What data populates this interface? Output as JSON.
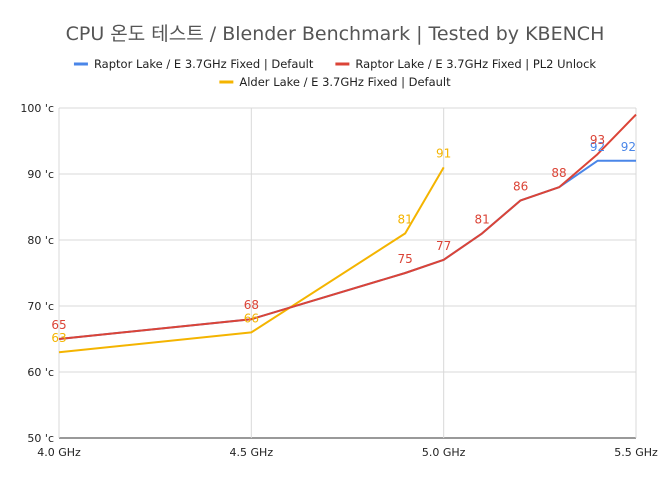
{
  "chart_data": {
    "type": "line",
    "title": "CPU 온도 테스트 / Blender Benchmark | Tested by KBENCH",
    "xlabel": "",
    "ylabel": "",
    "x_ticks": [
      {
        "value": 4.0,
        "label": "4.0 GHz"
      },
      {
        "value": 4.5,
        "label": "4.5 GHz"
      },
      {
        "value": 5.0,
        "label": "5.0 GHz"
      },
      {
        "value": 5.5,
        "label": "5.5 GHz"
      }
    ],
    "y_ticks": [
      {
        "value": 50,
        "label": "50 'c"
      },
      {
        "value": 60,
        "label": "60 'c"
      },
      {
        "value": 70,
        "label": "70 'c"
      },
      {
        "value": 80,
        "label": "80 'c"
      },
      {
        "value": 90,
        "label": "90 'c"
      },
      {
        "value": 100,
        "label": "100 'c"
      }
    ],
    "xlim": [
      4.0,
      5.5
    ],
    "ylim": [
      50,
      100
    ],
    "grid": true,
    "legend_position": "top",
    "series": [
      {
        "name": "Raptor Lake / E 3.7GHz Fixed |  Default",
        "color": "#4a86e8",
        "x": [
          4.0,
          4.5,
          4.9,
          5.0,
          5.1,
          5.2,
          5.3,
          5.4,
          5.5
        ],
        "y": [
          65,
          68,
          75,
          77,
          81,
          86,
          88,
          92,
          92
        ],
        "labels": [
          {
            "x": 5.4,
            "y": 92,
            "text": "92"
          },
          {
            "x": 5.5,
            "y": 92,
            "text": "92"
          }
        ]
      },
      {
        "name": "Raptor Lake / E 3.7GHz Fixed |  PL2 Unlock",
        "color": "#db4437",
        "x": [
          4.0,
          4.5,
          4.9,
          5.0,
          5.1,
          5.2,
          5.3,
          5.4,
          5.5
        ],
        "y": [
          65,
          68,
          75,
          77,
          81,
          86,
          88,
          93,
          99
        ],
        "labels": [
          {
            "x": 4.0,
            "y": 65,
            "text": "65"
          },
          {
            "x": 4.5,
            "y": 68,
            "text": "68"
          },
          {
            "x": 4.9,
            "y": 75,
            "text": "75"
          },
          {
            "x": 5.0,
            "y": 77,
            "text": "77"
          },
          {
            "x": 5.1,
            "y": 81,
            "text": "81"
          },
          {
            "x": 5.2,
            "y": 86,
            "text": "86"
          },
          {
            "x": 5.3,
            "y": 88,
            "text": "88"
          },
          {
            "x": 5.4,
            "y": 93,
            "text": "93"
          }
        ]
      },
      {
        "name": "Alder Lake / E 3.7GHz Fixed |  Default",
        "color": "#f4b400",
        "x": [
          4.0,
          4.5,
          4.9,
          5.0
        ],
        "y": [
          63,
          66,
          81,
          91
        ],
        "labels": [
          {
            "x": 4.0,
            "y": 63,
            "text": "63"
          },
          {
            "x": 4.5,
            "y": 66,
            "text": "66"
          },
          {
            "x": 4.9,
            "y": 81,
            "text": "81"
          },
          {
            "x": 5.0,
            "y": 91,
            "text": "91"
          }
        ]
      }
    ]
  }
}
